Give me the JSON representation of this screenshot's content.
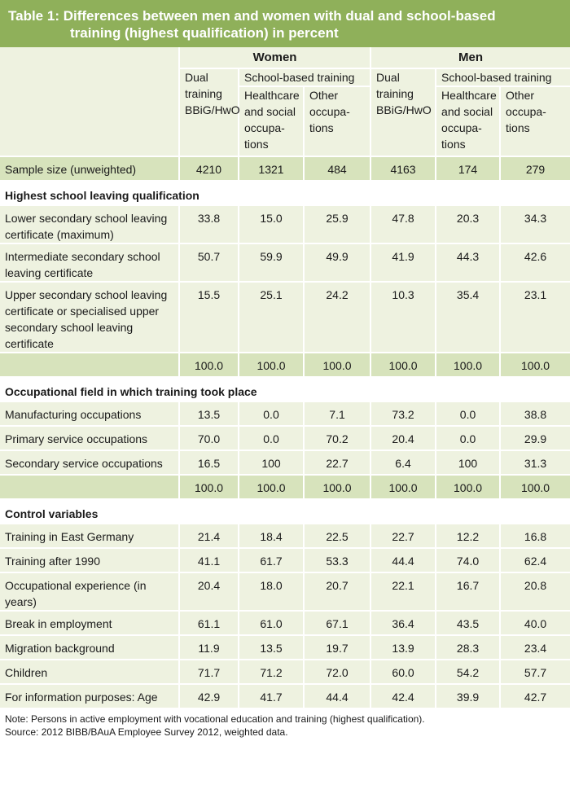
{
  "title": {
    "line1": "Table 1: Differences between men and women with dual and school-based",
    "line2": "training (highest qualification) in percent"
  },
  "header": {
    "women": "Women",
    "men": "Men",
    "dual": "Dual training BBiG/HwO",
    "school": "School-based training",
    "healthcare": "Healthcare and social occupa-tions",
    "other": "Other occupa-tions"
  },
  "sample": {
    "label": "Sample size (unweighted)",
    "values": [
      "4210",
      "1321",
      "484",
      "4163",
      "174",
      "279"
    ]
  },
  "sections": {
    "school_qual": "Highest school leaving qualification",
    "occ_field": "Occupational field in which training took place",
    "control": "Control variables"
  },
  "school_rows": [
    {
      "label": "Lower secondary school leaving certificate (maximum)",
      "values": [
        "33.8",
        "15.0",
        "25.9",
        "47.8",
        "20.3",
        "34.3"
      ]
    },
    {
      "label": "Intermediate secondary school leaving certificate",
      "values": [
        "50.7",
        "59.9",
        "49.9",
        "41.9",
        "44.3",
        "42.6"
      ]
    },
    {
      "label": "Upper secondary school leaving certificate or specialised upper secondary school leaving certificate",
      "values": [
        "15.5",
        "25.1",
        "24.2",
        "10.3",
        "35.4",
        "23.1"
      ]
    }
  ],
  "school_total": [
    "100.0",
    "100.0",
    "100.0",
    "100.0",
    "100.0",
    "100.0"
  ],
  "occ_rows": [
    {
      "label": "Manufacturing occupations",
      "values": [
        "13.5",
        "0.0",
        "7.1",
        "73.2",
        "0.0",
        "38.8"
      ]
    },
    {
      "label": "Primary service occupations",
      "values": [
        "70.0",
        "0.0",
        "70.2",
        "20.4",
        "0.0",
        "29.9"
      ]
    },
    {
      "label": "Secondary service occupations",
      "values": [
        "16.5",
        "100",
        "22.7",
        "6.4",
        "100",
        "31.3"
      ]
    }
  ],
  "occ_total": [
    "100.0",
    "100.0",
    "100.0",
    "100.0",
    "100.0",
    "100.0"
  ],
  "control_rows": [
    {
      "label": "Training in East Germany",
      "values": [
        "21.4",
        "18.4",
        "22.5",
        "22.7",
        "12.2",
        "16.8"
      ]
    },
    {
      "label": "Training after 1990",
      "values": [
        "41.1",
        "61.7",
        "53.3",
        "44.4",
        "74.0",
        "62.4"
      ]
    },
    {
      "label": "Occupational experience (in years)",
      "values": [
        "20.4",
        "18.0",
        "20.7",
        "22.1",
        "16.7",
        "20.8"
      ]
    },
    {
      "label": "Break in employment",
      "values": [
        "61.1",
        "61.0",
        "67.1",
        "36.4",
        "43.5",
        "40.0"
      ]
    },
    {
      "label": "Migration background",
      "values": [
        "11.9",
        "13.5",
        "19.7",
        "13.9",
        "28.3",
        "23.4"
      ]
    },
    {
      "label": "Children",
      "values": [
        "71.7",
        "71.2",
        "72.0",
        "60.0",
        "54.2",
        "57.7"
      ]
    },
    {
      "label": "For information purposes: Age",
      "values": [
        "42.9",
        "41.7",
        "44.4",
        "42.4",
        "39.9",
        "42.7"
      ]
    }
  ],
  "note": "Note: Persons in active employment with vocational education and training (highest qualification).",
  "source": "Source: 2012 BIBB/BAuA Employee Survey 2012, weighted data."
}
